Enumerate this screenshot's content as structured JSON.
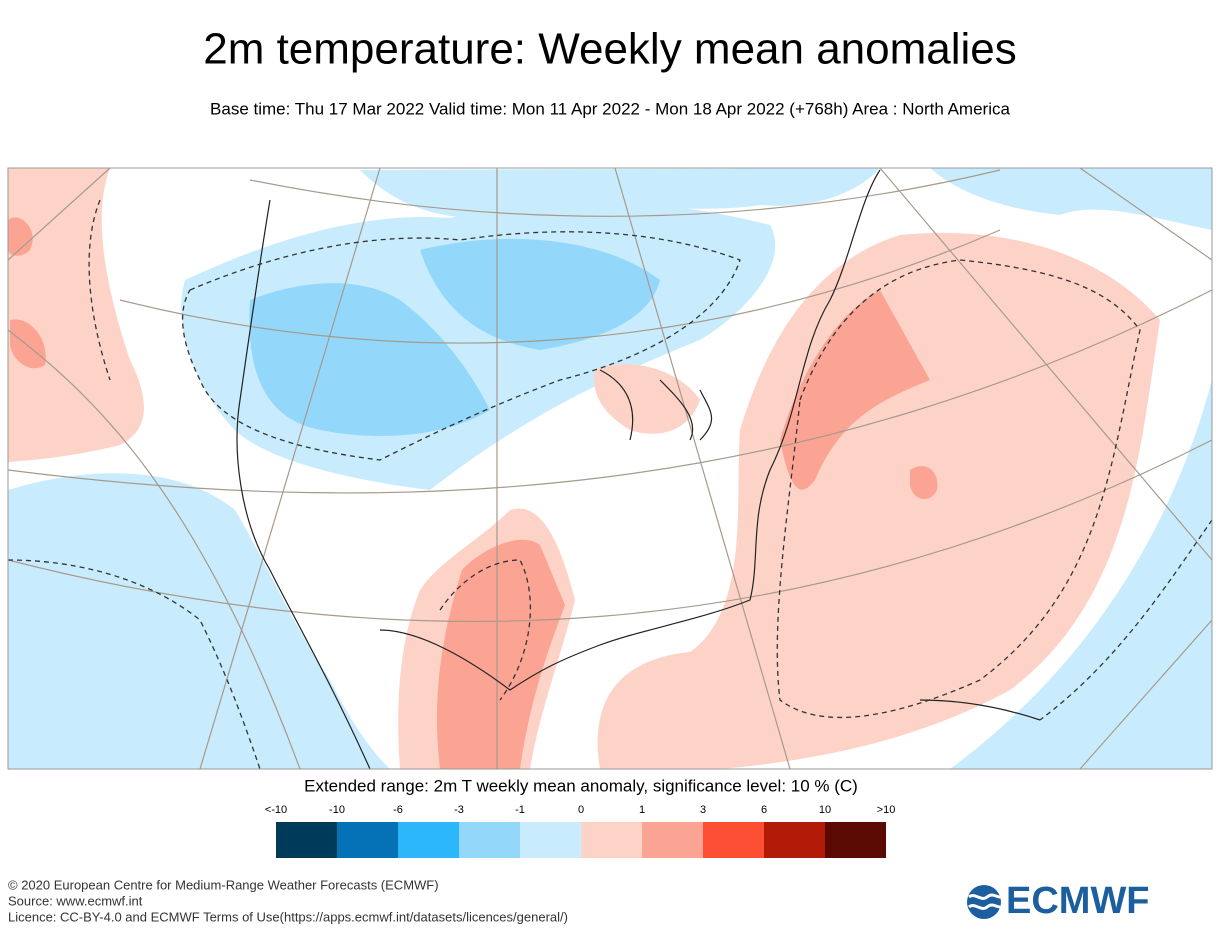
{
  "header": {
    "title": "2m temperature: Weekly mean anomalies",
    "subtitle": "Base time: Thu 17 Mar 2022 Valid time: Mon 11 Apr 2022 - Mon 18 Apr 2022 (+768h) Area : North America"
  },
  "legend": {
    "title": "Extended range: 2m T weekly mean anomaly, significance level: 10 % (C)",
    "ticks": [
      "<-10",
      "-10",
      "-6",
      "-3",
      "-1",
      "0",
      "1",
      "3",
      "6",
      "10",
      ">10"
    ],
    "colors": [
      "#003a5b",
      "#0572b6",
      "#2cb7fa",
      "#93d8fb",
      "#c8ecfd",
      "#fdd3c8",
      "#fca493",
      "#fd4f33",
      "#b21a08",
      "#5a0a03"
    ]
  },
  "footer": {
    "lines": [
      "© 2020 European Centre for Medium-Range Weather Forecasts (ECMWF)",
      "Source: www.ecmwf.int",
      "Licence: CC-BY-4.0 and ECMWF Terms of Use(https://apps.ecmwf.int/datasets/licences/general/)"
    ],
    "logo": "ECMWF"
  }
}
